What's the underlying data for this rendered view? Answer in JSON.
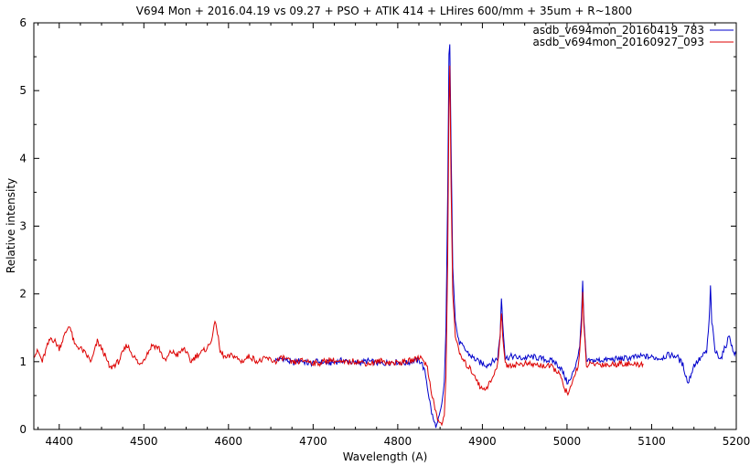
{
  "chart_data": {
    "type": "line",
    "title": "V694 Mon + 2016.04.19 vs 09.27 + PSO + ATIK 414 + LHires 600/mm + 35um + R~1800",
    "xlabel": "Wavelength (A)",
    "ylabel": "Relative intensity",
    "xlim": [
      4370,
      5200
    ],
    "ylim": [
      0,
      6
    ],
    "xticks": [
      4400,
      4500,
      4600,
      4700,
      4800,
      4900,
      5000,
      5100,
      5200
    ],
    "yticks": [
      0,
      1,
      2,
      3,
      4,
      5,
      6
    ],
    "grid": false,
    "legend": "top-right",
    "series": [
      {
        "name": "asdb_v694mon_20160419_783",
        "color": "#0000cc",
        "points": [
          [
            4655,
            1.02
          ],
          [
            4665,
            1.05
          ],
          [
            4675,
            0.98
          ],
          [
            4685,
            1.02
          ],
          [
            4695,
            0.97
          ],
          [
            4705,
            1.0
          ],
          [
            4720,
            0.98
          ],
          [
            4735,
            1.02
          ],
          [
            4750,
            0.98
          ],
          [
            4765,
            1.01
          ],
          [
            4780,
            0.97
          ],
          [
            4795,
            1.0
          ],
          [
            4810,
            0.98
          ],
          [
            4820,
            1.02
          ],
          [
            4828,
            1.0
          ],
          [
            4833,
            0.8
          ],
          [
            4836,
            0.55
          ],
          [
            4840,
            0.25
          ],
          [
            4843,
            0.1
          ],
          [
            4846,
            0.05
          ],
          [
            4849,
            0.18
          ],
          [
            4852,
            0.35
          ],
          [
            4855,
            0.7
          ],
          [
            4857,
            1.5
          ],
          [
            4859,
            3.5
          ],
          [
            4860.5,
            5.5
          ],
          [
            4861.5,
            5.68
          ],
          [
            4863,
            4.2
          ],
          [
            4865,
            2.4
          ],
          [
            4868,
            1.6
          ],
          [
            4872,
            1.3
          ],
          [
            4878,
            1.2
          ],
          [
            4885,
            1.1
          ],
          [
            4895,
            1.0
          ],
          [
            4905,
            0.95
          ],
          [
            4912,
            1.0
          ],
          [
            4918,
            1.05
          ],
          [
            4921,
            1.4
          ],
          [
            4922.5,
            1.95
          ],
          [
            4924,
            1.6
          ],
          [
            4927,
            1.05
          ],
          [
            4935,
            1.08
          ],
          [
            4945,
            1.05
          ],
          [
            4960,
            1.07
          ],
          [
            4975,
            1.03
          ],
          [
            4985,
            1.0
          ],
          [
            4993,
            0.9
          ],
          [
            5000,
            0.7
          ],
          [
            5004,
            0.72
          ],
          [
            5010,
            0.95
          ],
          [
            5015,
            1.2
          ],
          [
            5017,
            1.7
          ],
          [
            5018.5,
            2.15
          ],
          [
            5020,
            1.6
          ],
          [
            5023,
            1.0
          ],
          [
            5035,
            1.02
          ],
          [
            5050,
            1.03
          ],
          [
            5070,
            1.05
          ],
          [
            5090,
            1.08
          ],
          [
            5110,
            1.05
          ],
          [
            5120,
            1.1
          ],
          [
            5130,
            1.08
          ],
          [
            5137,
            0.95
          ],
          [
            5143,
            0.68
          ],
          [
            5150,
            0.95
          ],
          [
            5158,
            1.05
          ],
          [
            5165,
            1.15
          ],
          [
            5168,
            1.6
          ],
          [
            5169.5,
            2.1
          ],
          [
            5171,
            1.6
          ],
          [
            5175,
            1.15
          ],
          [
            5182,
            1.05
          ],
          [
            5188,
            1.25
          ],
          [
            5192,
            1.4
          ],
          [
            5196,
            1.15
          ],
          [
            5200,
            1.1
          ]
        ]
      },
      {
        "name": "asdb_v694mon_20160927_093",
        "color": "#dd0000",
        "points": [
          [
            4370,
            1.1
          ],
          [
            4375,
            1.15
          ],
          [
            4380,
            1.0
          ],
          [
            4385,
            1.2
          ],
          [
            4390,
            1.35
          ],
          [
            4395,
            1.3
          ],
          [
            4400,
            1.2
          ],
          [
            4405,
            1.35
          ],
          [
            4412,
            1.55
          ],
          [
            4418,
            1.25
          ],
          [
            4425,
            1.2
          ],
          [
            4432,
            1.1
          ],
          [
            4438,
            1.0
          ],
          [
            4445,
            1.3
          ],
          [
            4452,
            1.15
          ],
          [
            4460,
            0.9
          ],
          [
            4470,
            1.0
          ],
          [
            4480,
            1.25
          ],
          [
            4487,
            1.1
          ],
          [
            4495,
            0.95
          ],
          [
            4503,
            1.1
          ],
          [
            4510,
            1.25
          ],
          [
            4518,
            1.2
          ],
          [
            4525,
            1.0
          ],
          [
            4532,
            1.15
          ],
          [
            4540,
            1.1
          ],
          [
            4548,
            1.2
          ],
          [
            4555,
            1.0
          ],
          [
            4563,
            1.1
          ],
          [
            4570,
            1.15
          ],
          [
            4578,
            1.25
          ],
          [
            4585,
            1.6
          ],
          [
            4590,
            1.15
          ],
          [
            4597,
            1.05
          ],
          [
            4605,
            1.1
          ],
          [
            4615,
            1.0
          ],
          [
            4625,
            1.08
          ],
          [
            4635,
            1.0
          ],
          [
            4645,
            1.05
          ],
          [
            4655,
            1.0
          ],
          [
            4665,
            1.06
          ],
          [
            4675,
            0.98
          ],
          [
            4690,
            1.02
          ],
          [
            4705,
            0.97
          ],
          [
            4720,
            1.03
          ],
          [
            4735,
            0.98
          ],
          [
            4750,
            1.01
          ],
          [
            4765,
            0.97
          ],
          [
            4780,
            1.01
          ],
          [
            4795,
            0.98
          ],
          [
            4810,
            1.0
          ],
          [
            4820,
            1.03
          ],
          [
            4825,
            1.07
          ],
          [
            4830,
            1.05
          ],
          [
            4835,
            0.9
          ],
          [
            4840,
            0.55
          ],
          [
            4844,
            0.3
          ],
          [
            4848,
            0.12
          ],
          [
            4852,
            0.08
          ],
          [
            4855,
            0.2
          ],
          [
            4857,
            0.8
          ],
          [
            4859,
            2.5
          ],
          [
            4860.5,
            4.8
          ],
          [
            4861.5,
            5.36
          ],
          [
            4863,
            3.6
          ],
          [
            4865,
            2.0
          ],
          [
            4868,
            1.4
          ],
          [
            4872,
            1.15
          ],
          [
            4878,
            1.0
          ],
          [
            4885,
            0.9
          ],
          [
            4892,
            0.78
          ],
          [
            4898,
            0.6
          ],
          [
            4905,
            0.62
          ],
          [
            4912,
            0.75
          ],
          [
            4918,
            0.95
          ],
          [
            4921,
            1.4
          ],
          [
            4922.5,
            1.75
          ],
          [
            4924,
            1.4
          ],
          [
            4927,
            0.95
          ],
          [
            4935,
            0.95
          ],
          [
            4950,
            0.97
          ],
          [
            4965,
            0.95
          ],
          [
            4980,
            0.93
          ],
          [
            4990,
            0.85
          ],
          [
            4997,
            0.6
          ],
          [
            5002,
            0.52
          ],
          [
            5008,
            0.75
          ],
          [
            5014,
            1.0
          ],
          [
            5017,
            1.5
          ],
          [
            5018.5,
            2.0
          ],
          [
            5020,
            1.5
          ],
          [
            5023,
            0.95
          ],
          [
            5035,
            0.97
          ],
          [
            5050,
            0.95
          ],
          [
            5065,
            0.98
          ],
          [
            5080,
            0.95
          ],
          [
            5090,
            0.97
          ]
        ]
      }
    ]
  }
}
